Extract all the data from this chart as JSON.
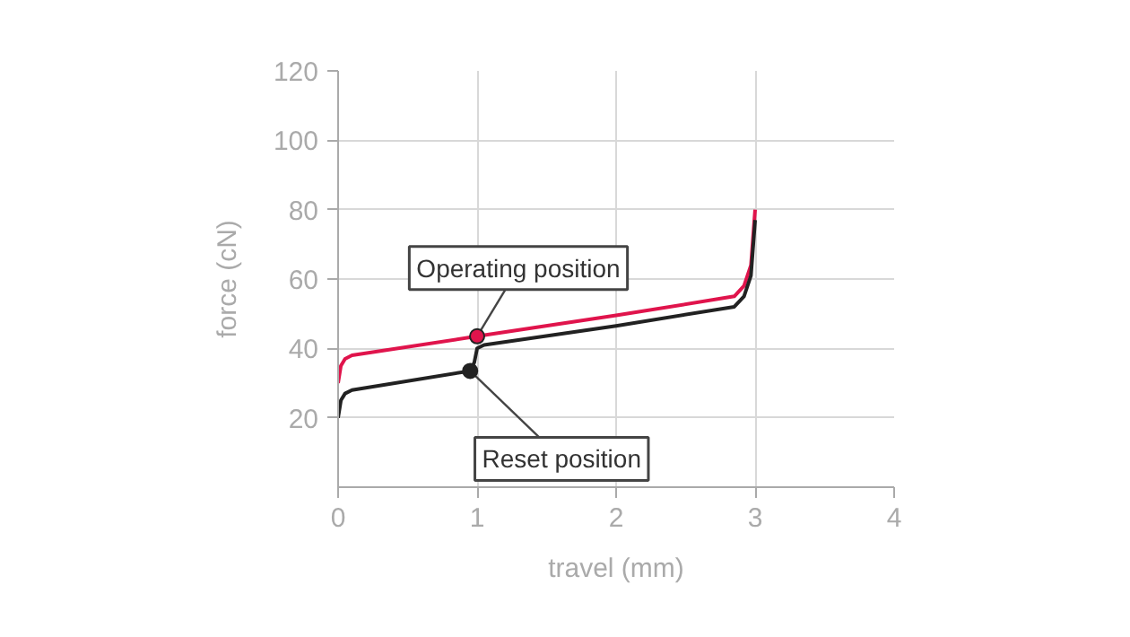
{
  "chart_data": {
    "type": "line",
    "xlabel": "travel (mm)",
    "ylabel": "force (cN)",
    "xlim": [
      0,
      4
    ],
    "ylim": [
      0,
      120
    ],
    "xticks": [
      0,
      1,
      2,
      3,
      4
    ],
    "yticks": [
      20,
      40,
      60,
      80,
      100,
      120
    ],
    "grid": true,
    "line_style": "solid",
    "series": [
      {
        "color": "#e0144c",
        "x": [
          0,
          0.02,
          0.05,
          0.1,
          1,
          2,
          2.85,
          2.92,
          2.97,
          3
        ],
        "values": [
          30,
          35,
          37,
          38,
          43.5,
          49.5,
          55,
          58,
          64,
          80
        ]
      },
      {
        "color": "#222222",
        "x": [
          0,
          0.02,
          0.05,
          0.1,
          0.95,
          0.98,
          1,
          1.05,
          2,
          2.85,
          2.92,
          2.97,
          3
        ],
        "values": [
          20,
          25,
          27,
          28,
          33.5,
          36,
          40,
          41,
          46.5,
          52,
          55,
          61,
          77
        ]
      }
    ],
    "annotations": [
      {
        "text": "Operating position",
        "x": 1,
        "y": 43.5
      },
      {
        "text": "Reset position",
        "x": 0.95,
        "y": 33.5
      }
    ]
  }
}
